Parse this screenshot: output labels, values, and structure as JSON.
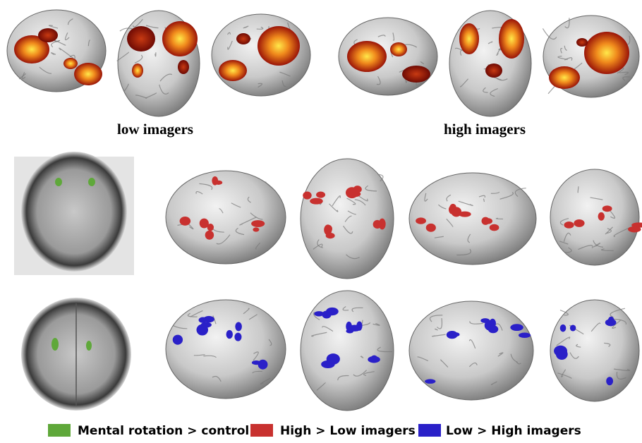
{
  "groups": [
    {
      "label": "low imagers"
    },
    {
      "label": "high imagers"
    }
  ],
  "legend": {
    "items": [
      {
        "label": "Mental rotation > control",
        "color": "#5fa83a"
      },
      {
        "label": "High > Low imagers",
        "color": "#c8312f"
      },
      {
        "label": "Low > High imagers",
        "color": "#2a20c8"
      }
    ]
  }
}
